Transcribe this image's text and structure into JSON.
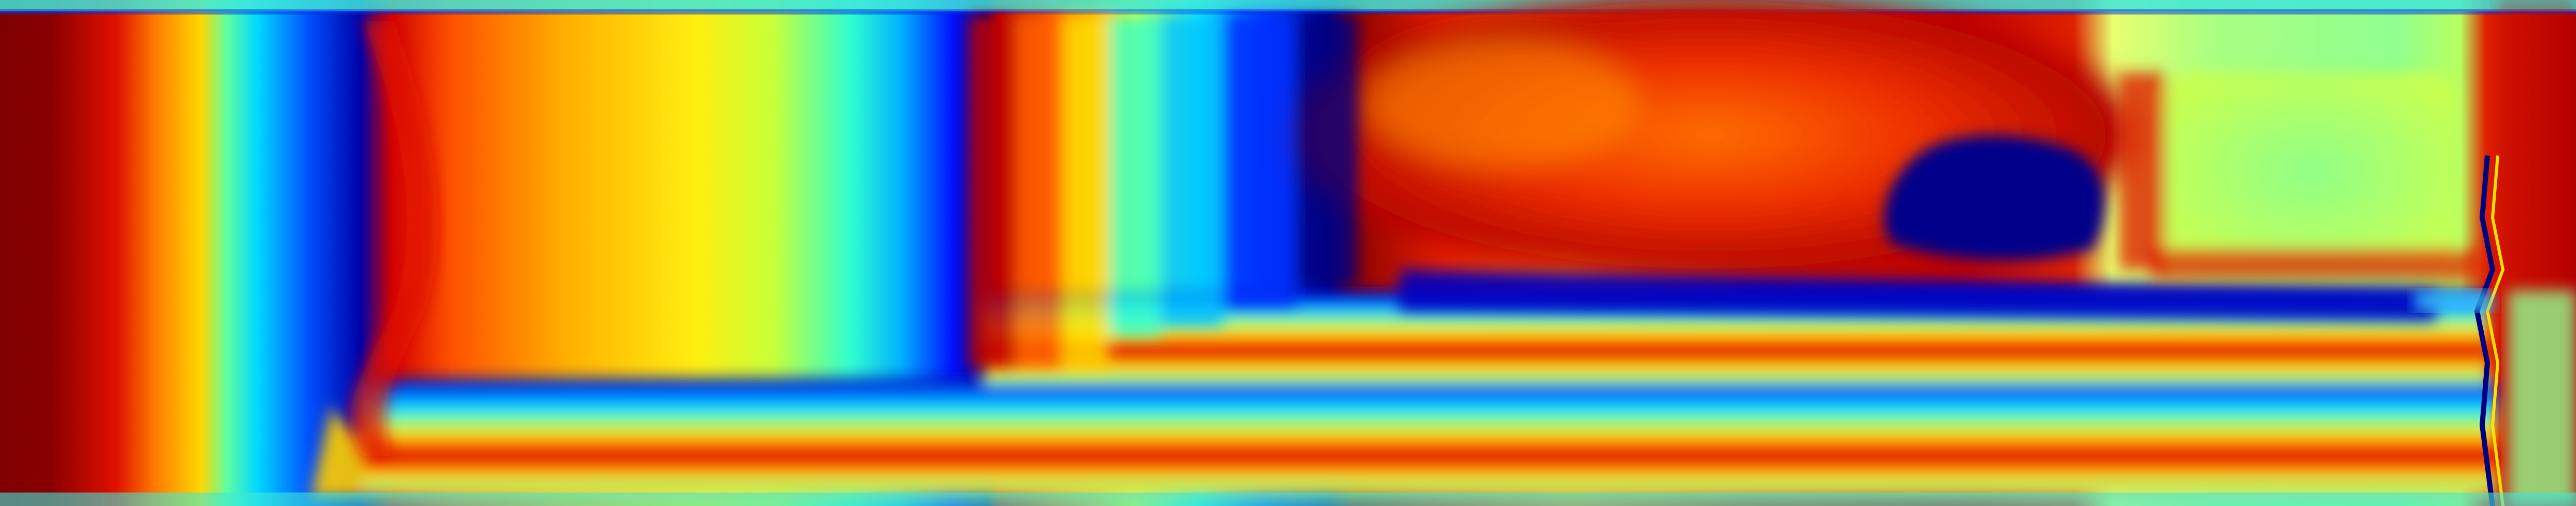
{
  "image": {
    "kind": "false-color heat map",
    "colormap": "jet",
    "colormap_stops": [
      "#00007f",
      "#0000ff",
      "#00ffff",
      "#7fff7f",
      "#ffff00",
      "#ff0000",
      "#7f0000"
    ]
  }
}
